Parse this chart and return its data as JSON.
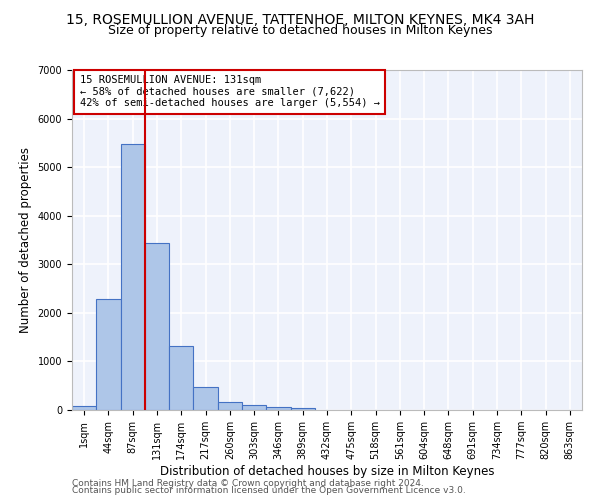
{
  "title": "15, ROSEMULLION AVENUE, TATTENHOE, MILTON KEYNES, MK4 3AH",
  "subtitle": "Size of property relative to detached houses in Milton Keynes",
  "xlabel": "Distribution of detached houses by size in Milton Keynes",
  "ylabel": "Number of detached properties",
  "footer_line1": "Contains HM Land Registry data © Crown copyright and database right 2024.",
  "footer_line2": "Contains public sector information licensed under the Open Government Licence v3.0.",
  "bar_labels": [
    "1sqm",
    "44sqm",
    "87sqm",
    "131sqm",
    "174sqm",
    "217sqm",
    "260sqm",
    "303sqm",
    "346sqm",
    "389sqm",
    "432sqm",
    "475sqm",
    "518sqm",
    "561sqm",
    "604sqm",
    "648sqm",
    "691sqm",
    "734sqm",
    "777sqm",
    "820sqm",
    "863sqm"
  ],
  "bar_values": [
    75,
    2280,
    5480,
    3430,
    1310,
    470,
    160,
    95,
    70,
    50,
    0,
    0,
    0,
    0,
    0,
    0,
    0,
    0,
    0,
    0,
    0
  ],
  "bar_color": "#aec6e8",
  "bar_edge_color": "#4472c4",
  "bar_edge_width": 0.8,
  "vline_x": 3,
  "vline_color": "#cc0000",
  "annotation_title": "15 ROSEMULLION AVENUE: 131sqm",
  "annotation_line1": "← 58% of detached houses are smaller (7,622)",
  "annotation_line2": "42% of semi-detached houses are larger (5,554) →",
  "annotation_box_color": "#cc0000",
  "ylim": [
    0,
    7000
  ],
  "yticks": [
    0,
    1000,
    2000,
    3000,
    4000,
    5000,
    6000,
    7000
  ],
  "background_color": "#eef2fb",
  "grid_color": "#ffffff",
  "title_fontsize": 10,
  "subtitle_fontsize": 9,
  "axis_label_fontsize": 8.5,
  "tick_fontsize": 7,
  "footer_fontsize": 6.5,
  "annotation_fontsize": 7.5
}
